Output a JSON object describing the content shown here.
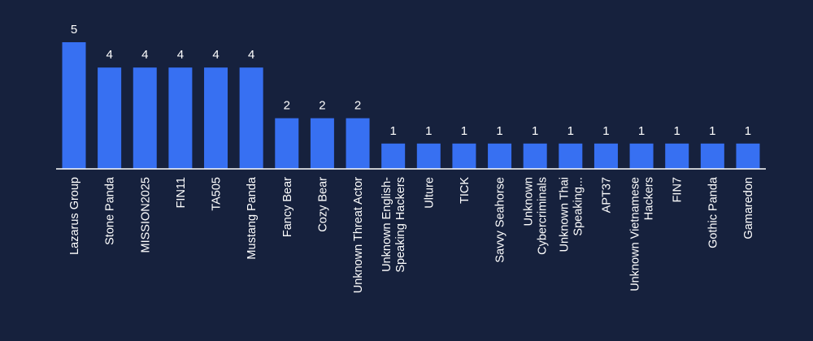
{
  "theme": {
    "background": "#16213d",
    "bar_color": "#3770f2",
    "text_color": "#ffffff",
    "axis_color": "#ffffff"
  },
  "chart_data": {
    "type": "bar",
    "title": "",
    "xlabel": "",
    "ylabel": "",
    "ylim": [
      0,
      5
    ],
    "grid": false,
    "legend": "none",
    "categories": [
      [
        "Lazarus Group"
      ],
      [
        "Stone Panda"
      ],
      [
        "MISSION2025"
      ],
      [
        "FIN11"
      ],
      [
        "TA505"
      ],
      [
        "Mustang Panda"
      ],
      [
        "Fancy Bear"
      ],
      [
        "Cozy Bear"
      ],
      [
        "Unknown Threat Actor"
      ],
      [
        "Unknown English-",
        "Speaking Hackers"
      ],
      [
        "Ulture"
      ],
      [
        "TICK"
      ],
      [
        "Savvy Seahorse"
      ],
      [
        "Unknown",
        "Cybercriminals"
      ],
      [
        "Unknown Thai",
        "Speaking..."
      ],
      [
        "APT37"
      ],
      [
        "Unknown Vietnamese",
        "Hackers"
      ],
      [
        "FIN7"
      ],
      [
        "Gothic Panda"
      ],
      [
        "Gamaredon"
      ]
    ],
    "values": [
      5,
      4,
      4,
      4,
      4,
      4,
      2,
      2,
      2,
      1,
      1,
      1,
      1,
      1,
      1,
      1,
      1,
      1,
      1,
      1
    ]
  }
}
